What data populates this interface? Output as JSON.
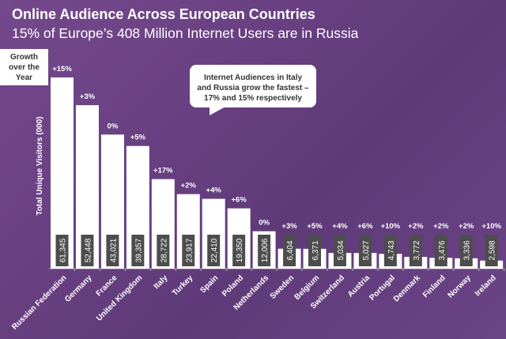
{
  "title": "Online Audience Across European Countries",
  "subtitle": "15% of Europe’s 408 Million Internet Users are in Russia",
  "growth_box": [
    "Growth",
    "over the",
    "Year"
  ],
  "callout": [
    "Internet Audiences in Italy",
    "and Russia grow the fastest –",
    "17% and 15% respectively"
  ],
  "colors": {
    "background": "#673f80",
    "bar": "#ffffff",
    "value_box": "#4d4d4d"
  },
  "chart_data": {
    "type": "bar",
    "title": "Online Audience Across European Countries",
    "xlabel": "",
    "ylabel": "Total Unique Visitors (000)",
    "ylim": [
      0,
      62000
    ],
    "grid": false,
    "categories": [
      "Russian Federation",
      "Germany",
      "France",
      "United Kingdom",
      "Italy",
      "Turkey",
      "Spain",
      "Poland",
      "Netherlands",
      "Sweden",
      "Belgium",
      "Switzerland",
      "Austria",
      "Portugal",
      "Denmark",
      "Finland",
      "Norway",
      "Ireland"
    ],
    "values": [
      61345,
      52448,
      43021,
      39357,
      28722,
      23917,
      22410,
      19350,
      12006,
      6404,
      6371,
      5034,
      5027,
      4743,
      3772,
      3476,
      3336,
      2598
    ],
    "value_labels": [
      "61,345",
      "52,448",
      "43,021",
      "39,357",
      "28,722",
      "23,917",
      "22,410",
      "19,350",
      "12,006",
      "6,404",
      "6,371",
      "5,034",
      "5,027",
      "4,743",
      "3,772",
      "3,476",
      "3,336",
      "2,598"
    ],
    "growth": [
      "+15%",
      "+3%",
      "0%",
      "+5%",
      "+17%",
      "+2%",
      "+4%",
      "+6%",
      "0%",
      "+3%",
      "+5%",
      "+4%",
      "+6%",
      "+10%",
      "+2%",
      "+2%",
      "+2%",
      "+10%"
    ]
  }
}
